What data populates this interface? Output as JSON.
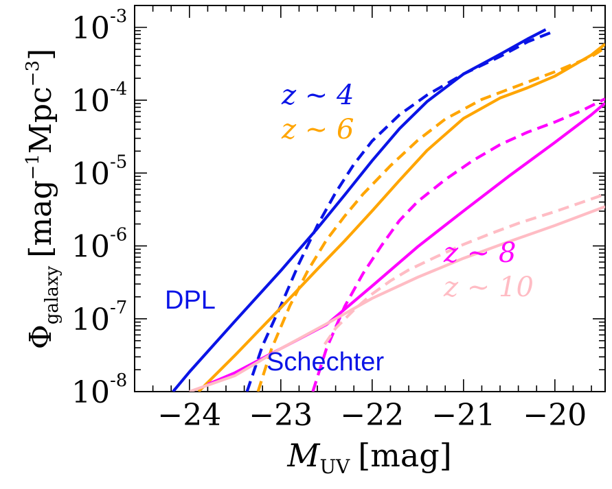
{
  "chart_data": {
    "type": "line",
    "title": "",
    "xlabel": {
      "symbol": "M",
      "subscript": "UV",
      "unit": "[mag]"
    },
    "ylabel": {
      "symbol": "Φ",
      "subscript": "galaxy",
      "unit_prefix": "[mag",
      "unit_exp1": "−1",
      "unit_mid": "Mpc",
      "unit_exp2": "−3",
      "unit_suffix": "]"
    },
    "xlim": [
      -24.6,
      -19.45
    ],
    "ylim_log10": [
      -8,
      -2.7
    ],
    "x_ticks": [
      {
        "value": -24,
        "label": "−24"
      },
      {
        "value": -23,
        "label": "−23"
      },
      {
        "value": -22,
        "label": "−22"
      },
      {
        "value": -21,
        "label": "−21"
      },
      {
        "value": -20,
        "label": "−20"
      }
    ],
    "y_ticks": [
      {
        "value": -8,
        "base": "10",
        "exp": "-8"
      },
      {
        "value": -7,
        "base": "10",
        "exp": "-7"
      },
      {
        "value": -6,
        "base": "10",
        "exp": "-6"
      },
      {
        "value": -5,
        "base": "10",
        "exp": "-5"
      },
      {
        "value": -4,
        "base": "10",
        "exp": "-4"
      },
      {
        "value": -3,
        "base": "10",
        "exp": "-3"
      }
    ],
    "colors": {
      "z4": "#0a14e6",
      "z6": "#ffa500",
      "z8": "#ff00ff",
      "z10": "#ffbcc4"
    },
    "series": [
      {
        "name": "z~4 DPL",
        "style": "solid",
        "color": "#0a14e6",
        "x": [
          -24.18,
          -24.0,
          -23.5,
          -23.0,
          -22.6,
          -22.3,
          -22.0,
          -21.7,
          -21.4,
          -21.0,
          -20.6,
          -20.3,
          -20.1
        ],
        "log_phi": [
          -8.0,
          -7.73,
          -7.03,
          -6.34,
          -5.76,
          -5.3,
          -4.83,
          -4.39,
          -4.02,
          -3.64,
          -3.37,
          -3.16,
          -3.03
        ]
      },
      {
        "name": "z~4 Schechter",
        "style": "dashed",
        "color": "#0a14e6",
        "x": [
          -23.37,
          -23.2,
          -23.0,
          -22.8,
          -22.6,
          -22.4,
          -22.2,
          -22.0,
          -21.7,
          -21.4,
          -21.0,
          -20.6,
          -20.3,
          -20.0
        ],
        "log_phi": [
          -8.0,
          -7.37,
          -6.82,
          -6.24,
          -5.72,
          -5.27,
          -4.88,
          -4.56,
          -4.2,
          -3.93,
          -3.64,
          -3.4,
          -3.2,
          -3.05
        ]
      },
      {
        "name": "z~6 DPL",
        "style": "solid",
        "color": "#ffa500",
        "x": [
          -23.9,
          -23.5,
          -23.0,
          -22.6,
          -22.3,
          -22.0,
          -21.7,
          -21.4,
          -21.0,
          -20.6,
          -20.3,
          -20.0,
          -19.6,
          -19.45
        ],
        "log_phi": [
          -8.0,
          -7.5,
          -6.85,
          -6.32,
          -5.93,
          -5.52,
          -5.1,
          -4.69,
          -4.25,
          -3.97,
          -3.83,
          -3.67,
          -3.38,
          -3.23
        ]
      },
      {
        "name": "z~6 Schechter",
        "style": "dashed",
        "color": "#ffa500",
        "x": [
          -23.25,
          -23.1,
          -22.9,
          -22.7,
          -22.5,
          -22.3,
          -22.1,
          -21.8,
          -21.5,
          -21.2,
          -20.8,
          -20.4,
          -20.0,
          -19.6,
          -19.45
        ],
        "log_phi": [
          -8.0,
          -7.41,
          -6.82,
          -6.33,
          -5.92,
          -5.59,
          -5.29,
          -4.9,
          -4.55,
          -4.26,
          -3.99,
          -3.8,
          -3.61,
          -3.4,
          -3.28
        ]
      },
      {
        "name": "z~8 DPL",
        "style": "solid",
        "color": "#ff00ff",
        "x": [
          -23.8,
          -23.5,
          -23.0,
          -22.5,
          -22.0,
          -21.5,
          -21.0,
          -20.5,
          -20.0,
          -19.6,
          -19.45
        ],
        "log_phi": [
          -7.9,
          -7.74,
          -7.41,
          -7.08,
          -6.55,
          -6.01,
          -5.52,
          -5.04,
          -4.58,
          -4.2,
          -4.04
        ]
      },
      {
        "name": "z~8 Schechter",
        "style": "dashed",
        "color": "#ff00ff",
        "x": [
          -22.65,
          -22.5,
          -22.3,
          -22.1,
          -21.9,
          -21.7,
          -21.5,
          -21.2,
          -20.9,
          -20.6,
          -20.3,
          -20.0,
          -19.7,
          -19.45
        ],
        "log_phi": [
          -8.0,
          -7.41,
          -6.83,
          -6.38,
          -6.0,
          -5.65,
          -5.39,
          -5.09,
          -4.83,
          -4.61,
          -4.44,
          -4.3,
          -4.14,
          -3.98
        ]
      },
      {
        "name": "z~10 DPL",
        "style": "solid",
        "color": "#ffbcc4",
        "x": [
          -24.0,
          -23.5,
          -23.0,
          -22.5,
          -22.0,
          -21.5,
          -21.0,
          -20.5,
          -20.0,
          -19.45
        ],
        "log_phi": [
          -8.15,
          -7.78,
          -7.41,
          -7.07,
          -6.72,
          -6.43,
          -6.17,
          -5.94,
          -5.72,
          -5.46
        ]
      },
      {
        "name": "z~10 Schechter",
        "style": "dashed",
        "color": "#ffbcc4",
        "x": [
          -22.52,
          -22.4,
          -22.2,
          -22.0,
          -21.8,
          -21.6,
          -21.3,
          -21.0,
          -20.7,
          -20.4,
          -20.0,
          -19.7,
          -19.45
        ],
        "log_phi": [
          -7.35,
          -7.13,
          -6.88,
          -6.66,
          -6.48,
          -6.33,
          -6.15,
          -5.98,
          -5.83,
          -5.69,
          -5.53,
          -5.4,
          -5.29
        ]
      }
    ],
    "annotations": {
      "z4": "z ~ 4",
      "z6": "z ~ 6",
      "z8": "z ~ 8",
      "z10": "z ~ 10",
      "dpl": "DPL",
      "schechter": "Schechter"
    }
  }
}
